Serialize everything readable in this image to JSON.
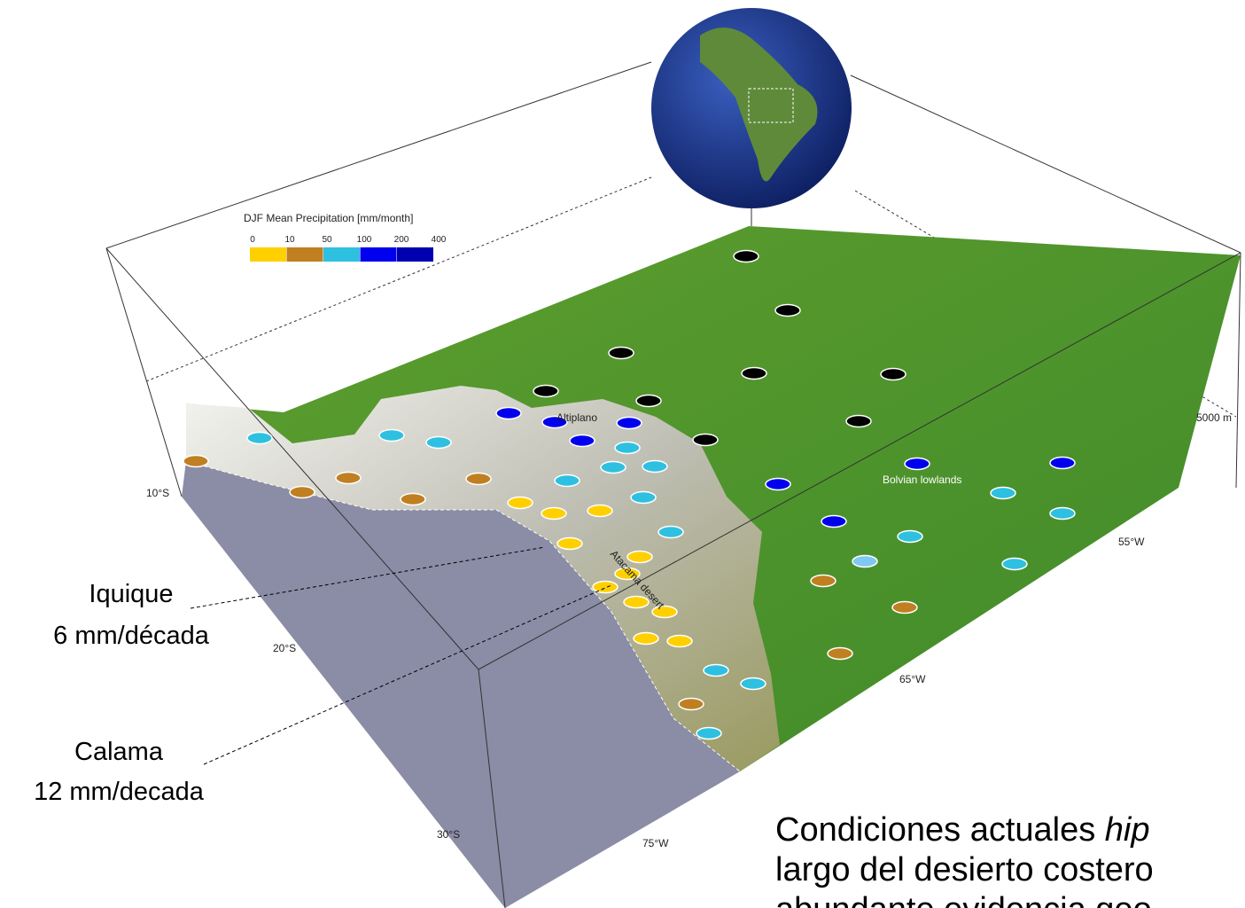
{
  "legend": {
    "title": "DJF Mean Precipitation [mm/month]",
    "ticks": [
      "0",
      "10",
      "50",
      "100",
      "200",
      "400"
    ]
  },
  "labels": {
    "altiplano": "Altiplano",
    "lowlands": "Bolvian lowlands",
    "atacama": "Atacama desert",
    "lat10": "10°S",
    "lat20": "20°S",
    "lat30": "30°S",
    "lon75": "75°W",
    "lon65": "65°W",
    "lon55": "55°W",
    "height": "5000 m"
  },
  "annotations": {
    "iquique_name": "Iquique",
    "iquique_trend": "6 mm/década",
    "calama_name": "Calama",
    "calama_trend": "12 mm/decada"
  },
  "caption": {
    "line1_start": "Condiciones actuales ",
    "line1_italic": "hip",
    "line2": "largo del desierto costero",
    "line3": "abundante evidencia geo"
  }
}
